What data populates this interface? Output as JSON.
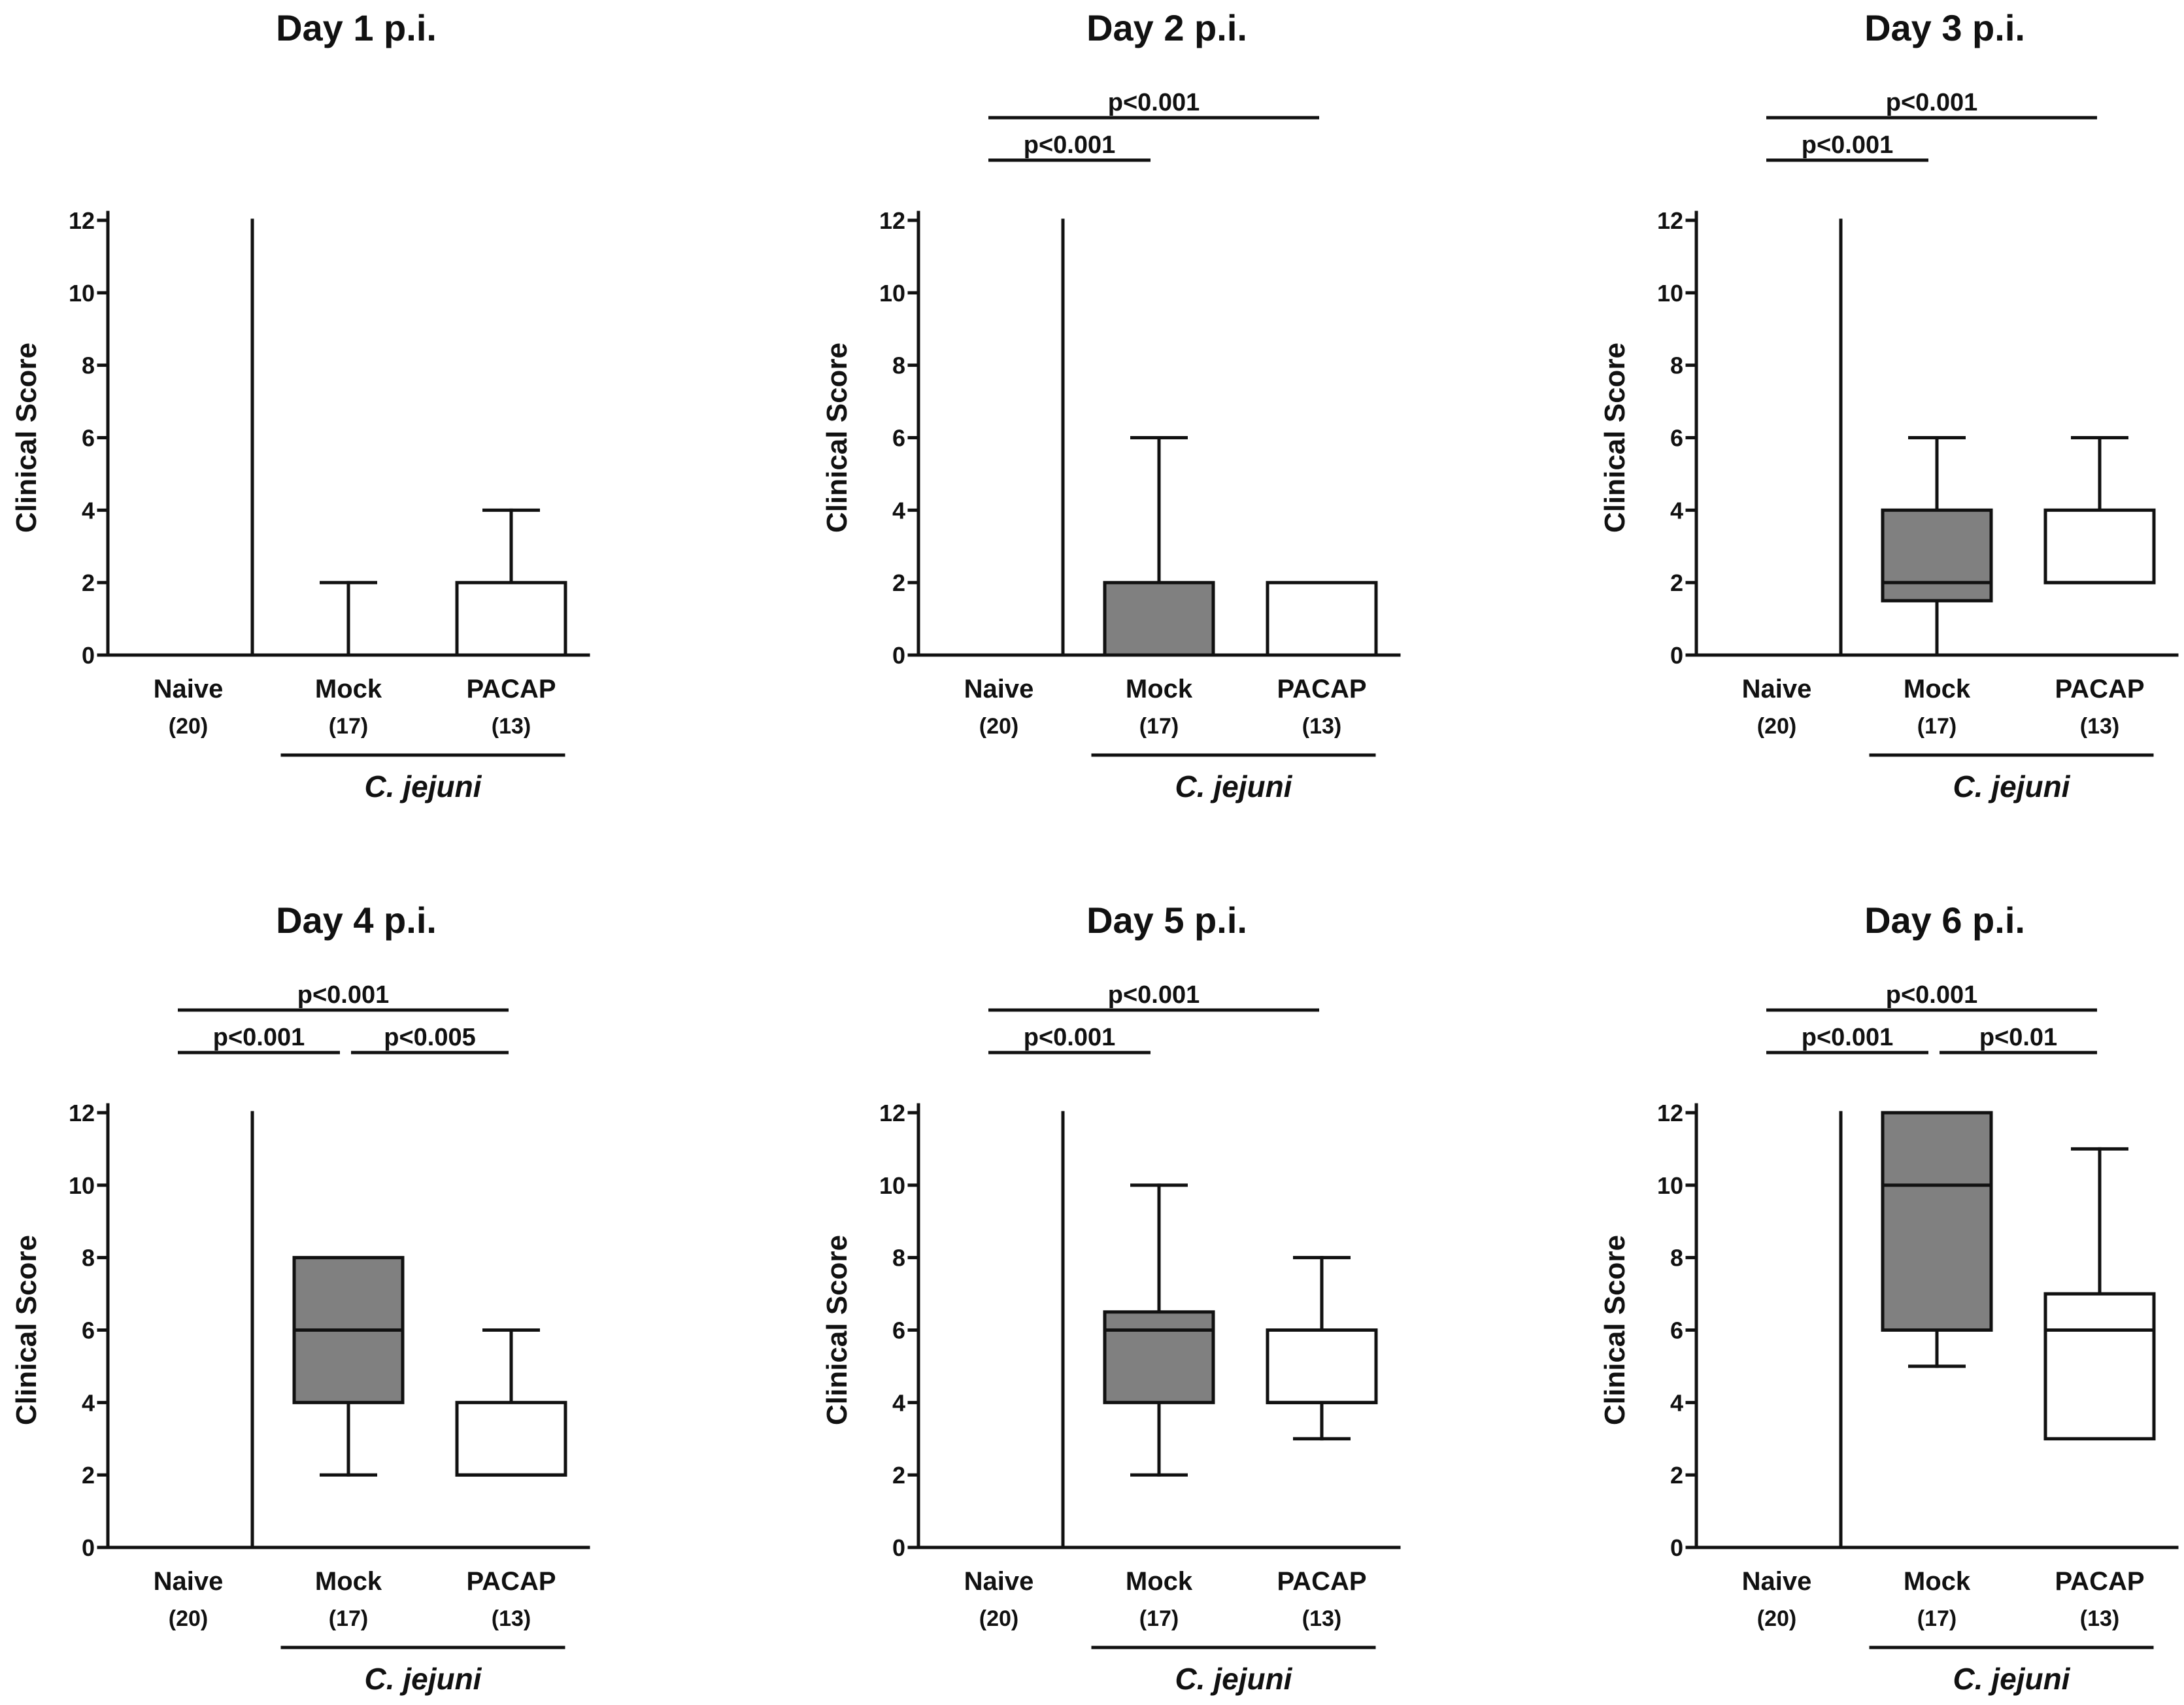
{
  "figure": {
    "sig_line_color": "#111111",
    "mock_fill": "#808080",
    "pacap_fill": "#ffffff"
  },
  "chart_data": [
    {
      "type": "box",
      "title": "Day 1 p.i.",
      "ylabel": "Clinical Score",
      "ylim": [
        0,
        12
      ],
      "yticks": [
        "0",
        "2",
        "4",
        "6",
        "8",
        "10",
        "12"
      ],
      "categories": [
        "Naive",
        "Mock",
        "PACAP"
      ],
      "counts": [
        "(20)",
        "(17)",
        "(13)"
      ],
      "group_label": "C. jejuni",
      "boxes": [
        {
          "name": "Naive",
          "min": 0,
          "q1": 0,
          "median": 0,
          "q3": 0,
          "max": 0,
          "fill": "#ffffff"
        },
        {
          "name": "Mock",
          "min": 0,
          "q1": 0,
          "median": 0,
          "q3": 0,
          "max": 2,
          "fill": "#808080"
        },
        {
          "name": "PACAP",
          "min": 0,
          "q1": 0,
          "median": 0,
          "q3": 2,
          "max": 4,
          "fill": "#ffffff"
        }
      ],
      "significance": []
    },
    {
      "type": "box",
      "title": "Day 2 p.i.",
      "ylabel": "Clinical Score",
      "ylim": [
        0,
        12
      ],
      "yticks": [
        "0",
        "2",
        "4",
        "6",
        "8",
        "10",
        "12"
      ],
      "categories": [
        "Naive",
        "Mock",
        "PACAP"
      ],
      "counts": [
        "(20)",
        "(17)",
        "(13)"
      ],
      "group_label": "C. jejuni",
      "boxes": [
        {
          "name": "Naive",
          "min": 0,
          "q1": 0,
          "median": 0,
          "q3": 0,
          "max": 0,
          "fill": "#ffffff"
        },
        {
          "name": "Mock",
          "min": 0,
          "q1": 0,
          "median": 0,
          "q3": 2,
          "max": 6,
          "fill": "#808080"
        },
        {
          "name": "PACAP",
          "min": 0,
          "q1": 0,
          "median": 0,
          "q3": 2,
          "max": 2,
          "fill": "#ffffff"
        }
      ],
      "significance": [
        {
          "from": 0,
          "to": 2,
          "label": "p<0.001",
          "level": 2
        },
        {
          "from": 0,
          "to": 1,
          "label": "p<0.001",
          "level": 1
        }
      ]
    },
    {
      "type": "box",
      "title": "Day 3 p.i.",
      "ylabel": "Clinical Score",
      "ylim": [
        0,
        12
      ],
      "yticks": [
        "0",
        "2",
        "4",
        "6",
        "8",
        "10",
        "12"
      ],
      "categories": [
        "Naive",
        "Mock",
        "PACAP"
      ],
      "counts": [
        "(20)",
        "(17)",
        "(13)"
      ],
      "group_label": "C. jejuni",
      "boxes": [
        {
          "name": "Naive",
          "min": 0,
          "q1": 0,
          "median": 0,
          "q3": 0,
          "max": 0,
          "fill": "#ffffff"
        },
        {
          "name": "Mock",
          "min": 0,
          "q1": 1.5,
          "median": 2,
          "q3": 4,
          "max": 6,
          "fill": "#808080"
        },
        {
          "name": "PACAP",
          "min": 2,
          "q1": 2,
          "median": 2,
          "q3": 4,
          "max": 6,
          "fill": "#ffffff"
        }
      ],
      "significance": [
        {
          "from": 0,
          "to": 2,
          "label": "p<0.001",
          "level": 2
        },
        {
          "from": 0,
          "to": 1,
          "label": "p<0.001",
          "level": 1
        }
      ]
    },
    {
      "type": "box",
      "title": "Day 4 p.i.",
      "ylabel": "Clinical Score",
      "ylim": [
        0,
        12
      ],
      "yticks": [
        "0",
        "2",
        "4",
        "6",
        "8",
        "10",
        "12"
      ],
      "categories": [
        "Naive",
        "Mock",
        "PACAP"
      ],
      "counts": [
        "(20)",
        "(17)",
        "(13)"
      ],
      "group_label": "C. jejuni",
      "boxes": [
        {
          "name": "Naive",
          "min": 0,
          "q1": 0,
          "median": 0,
          "q3": 0,
          "max": 0,
          "fill": "#ffffff"
        },
        {
          "name": "Mock",
          "min": 2,
          "q1": 4,
          "median": 6,
          "q3": 8,
          "max": 8,
          "fill": "#808080"
        },
        {
          "name": "PACAP",
          "min": 2,
          "q1": 2,
          "median": 2,
          "q3": 4,
          "max": 6,
          "fill": "#ffffff"
        }
      ],
      "significance": [
        {
          "from": 0,
          "to": 2,
          "label": "p<0.001",
          "level": 2
        },
        {
          "from": 0,
          "to": 1,
          "label": "p<0.001",
          "level": 1
        },
        {
          "from": 1,
          "to": 2,
          "label": "p<0.005",
          "level": 1
        }
      ]
    },
    {
      "type": "box",
      "title": "Day 5 p.i.",
      "ylabel": "Clinical Score",
      "ylim": [
        0,
        12
      ],
      "yticks": [
        "0",
        "2",
        "4",
        "6",
        "8",
        "10",
        "12"
      ],
      "categories": [
        "Naive",
        "Mock",
        "PACAP"
      ],
      "counts": [
        "(20)",
        "(17)",
        "(13)"
      ],
      "group_label": "C. jejuni",
      "boxes": [
        {
          "name": "Naive",
          "min": 0,
          "q1": 0,
          "median": 0,
          "q3": 0,
          "max": 0,
          "fill": "#ffffff"
        },
        {
          "name": "Mock",
          "min": 2,
          "q1": 4,
          "median": 6,
          "q3": 6.5,
          "max": 10,
          "fill": "#808080"
        },
        {
          "name": "PACAP",
          "min": 3,
          "q1": 4,
          "median": 4,
          "q3": 6,
          "max": 8,
          "fill": "#ffffff"
        }
      ],
      "significance": [
        {
          "from": 0,
          "to": 2,
          "label": "p<0.001",
          "level": 2
        },
        {
          "from": 0,
          "to": 1,
          "label": "p<0.001",
          "level": 1
        }
      ]
    },
    {
      "type": "box",
      "title": "Day 6 p.i.",
      "ylabel": "Clinical Score",
      "ylim": [
        0,
        12
      ],
      "yticks": [
        "0",
        "2",
        "4",
        "6",
        "8",
        "10",
        "12"
      ],
      "categories": [
        "Naive",
        "Mock",
        "PACAP"
      ],
      "counts": [
        "(20)",
        "(17)",
        "(13)"
      ],
      "group_label": "C. jejuni",
      "boxes": [
        {
          "name": "Naive",
          "min": 0,
          "q1": 0,
          "median": 0,
          "q3": 0,
          "max": 0,
          "fill": "#ffffff"
        },
        {
          "name": "Mock",
          "min": 5,
          "q1": 6,
          "median": 10,
          "q3": 12,
          "max": 12,
          "fill": "#808080"
        },
        {
          "name": "PACAP",
          "min": 3,
          "q1": 3,
          "median": 6,
          "q3": 7,
          "max": 11,
          "fill": "#ffffff"
        }
      ],
      "significance": [
        {
          "from": 0,
          "to": 2,
          "label": "p<0.001",
          "level": 2
        },
        {
          "from": 0,
          "to": 1,
          "label": "p<0.001",
          "level": 1
        },
        {
          "from": 1,
          "to": 2,
          "label": "p<0.01",
          "level": 1
        }
      ]
    }
  ]
}
